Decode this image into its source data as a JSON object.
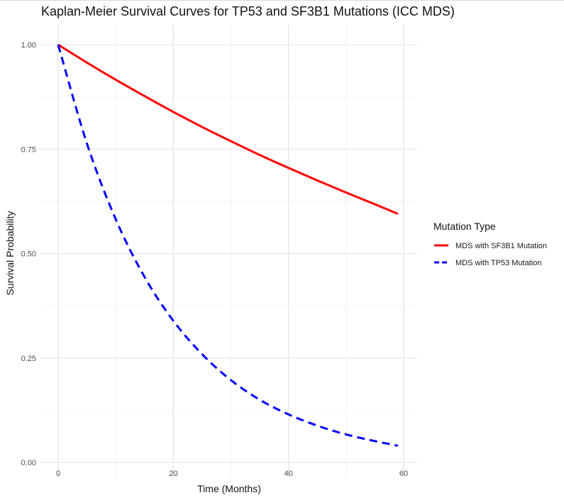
{
  "chart_data": {
    "type": "line",
    "title": "Kaplan-Meier Survival Curves for TP53 and SF3B1 Mutations (ICC MDS)",
    "xlabel": "Time (Months)",
    "ylabel": "Survival Probability",
    "xlim": [
      0,
      59
    ],
    "ylim": [
      0,
      1
    ],
    "x_ticks": [
      0,
      20,
      40,
      60
    ],
    "y_ticks": [
      0.0,
      0.25,
      0.5,
      0.75,
      1.0
    ],
    "x_tick_labels": [
      "0",
      "20",
      "40",
      "60"
    ],
    "y_tick_labels": [
      "0.00",
      "0.25",
      "0.50",
      "0.75",
      "1.00"
    ],
    "grid": true,
    "legend": {
      "title": "Mutation Type",
      "position": "right"
    },
    "series": [
      {
        "name": "MDS with SF3B1 Mutation",
        "color": "#ff0000",
        "line_style": "solid",
        "x": [
          0,
          5,
          10,
          15,
          20,
          25,
          30,
          35,
          40,
          45,
          50,
          55,
          59
        ],
        "y": [
          1.0,
          0.957,
          0.916,
          0.877,
          0.839,
          0.803,
          0.769,
          0.736,
          0.705,
          0.675,
          0.646,
          0.618,
          0.595
        ]
      },
      {
        "name": "MDS with TP53 Mutation",
        "color": "#0000ff",
        "line_style": "dashed",
        "x": [
          0,
          5,
          10,
          15,
          20,
          25,
          30,
          35,
          40,
          45,
          50,
          55,
          59
        ],
        "y": [
          1.0,
          0.763,
          0.582,
          0.444,
          0.339,
          0.259,
          0.197,
          0.15,
          0.115,
          0.088,
          0.067,
          0.051,
          0.04
        ]
      }
    ]
  }
}
